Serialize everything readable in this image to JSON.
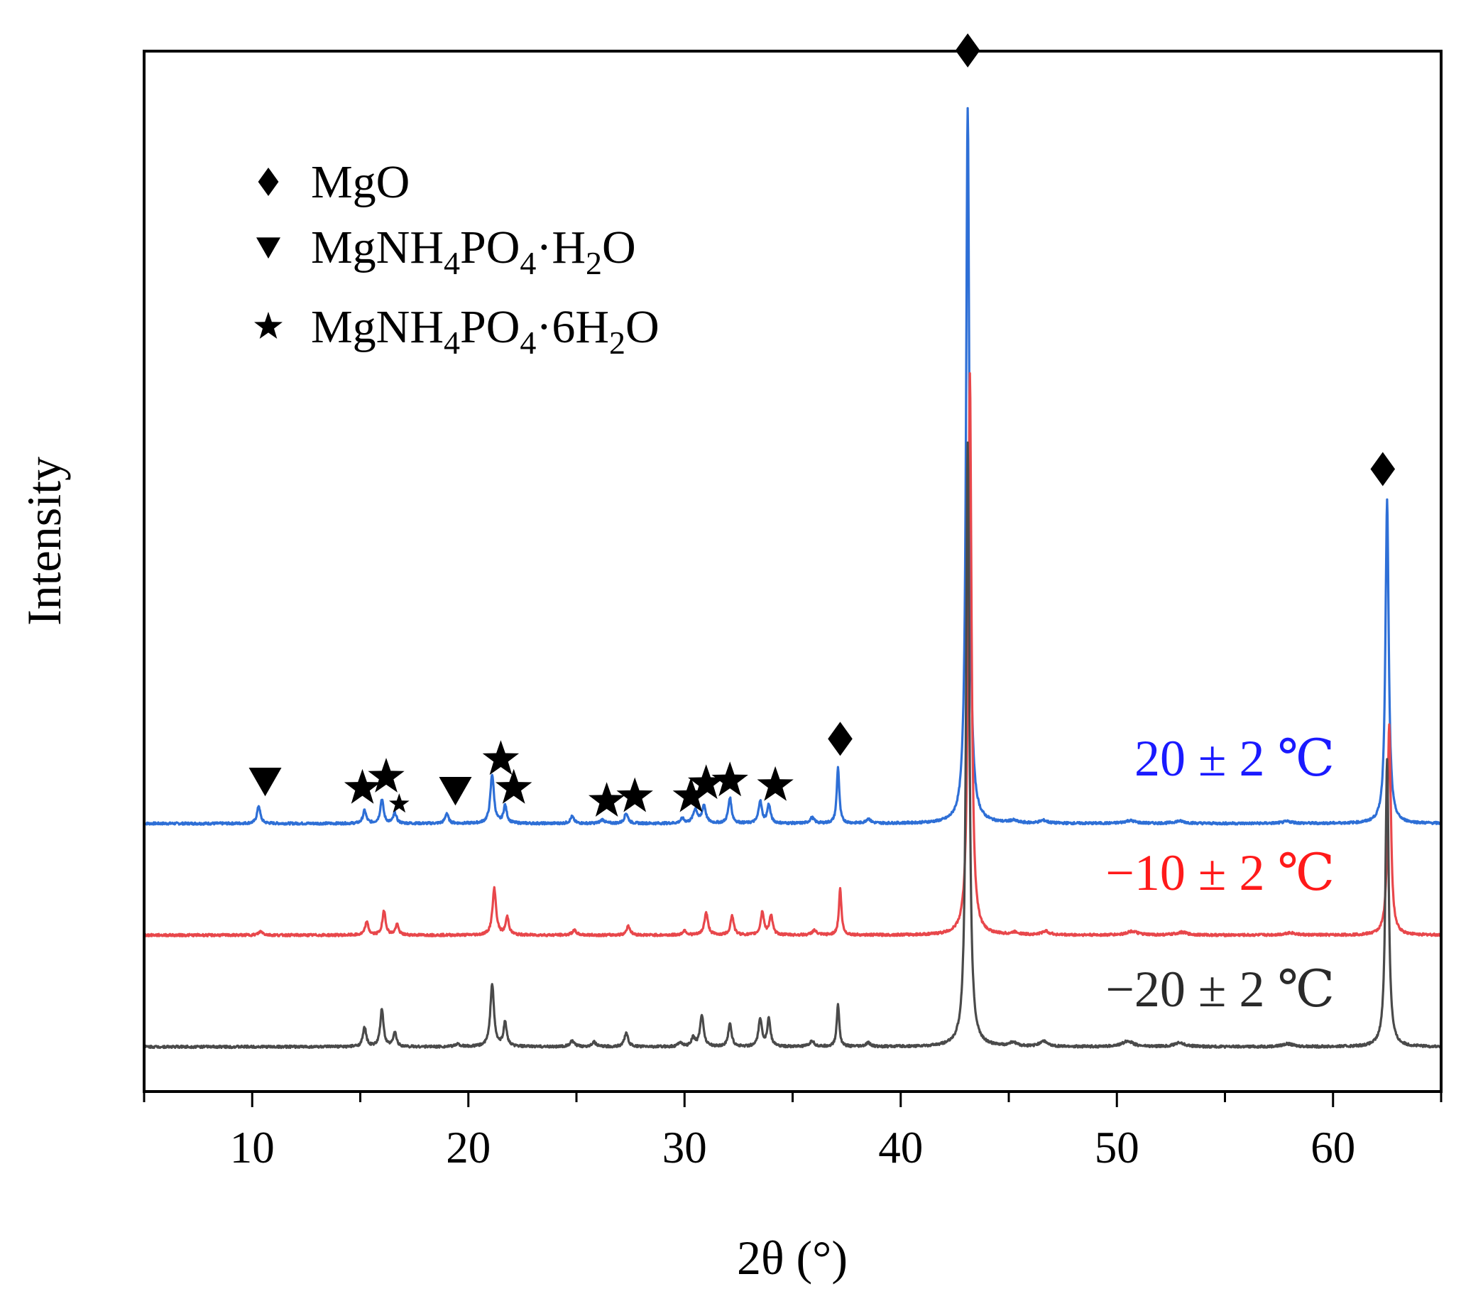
{
  "chart_data": {
    "type": "line",
    "title": "",
    "xlabel": "2θ (°)",
    "ylabel": "Intensity",
    "xlim": [
      5,
      65
    ],
    "xticks": [
      10,
      20,
      30,
      40,
      50,
      60
    ],
    "yticks_shown": false,
    "grid": false,
    "legend": {
      "placement": "top-left",
      "entries": [
        {
          "marker": "diamond",
          "phase": "MgO",
          "parts": [
            {
              "t": "MgO"
            }
          ]
        },
        {
          "marker": "triangle-down",
          "phase": "MgNH4PO4·H2O",
          "parts": [
            {
              "t": "MgNH"
            },
            {
              "t": "4",
              "sub": true
            },
            {
              "t": "PO"
            },
            {
              "t": "4",
              "sub": true
            },
            {
              "t": "·H"
            },
            {
              "t": "2",
              "sub": true
            },
            {
              "t": "O"
            }
          ]
        },
        {
          "marker": "star",
          "phase": "MgNH4PO4·6H2O",
          "parts": [
            {
              "t": "MgNH"
            },
            {
              "t": "4",
              "sub": true
            },
            {
              "t": "PO"
            },
            {
              "t": "4",
              "sub": true
            },
            {
              "t": "·6H"
            },
            {
              "t": "2",
              "sub": true
            },
            {
              "t": "O"
            }
          ]
        }
      ]
    },
    "series": [
      {
        "name": "20 ± 2 ℃",
        "label": "20  ±  2 ℃",
        "color": "#2e6fd6",
        "label_color": "#1a1aff",
        "baseline": 4.8,
        "peaks": [
          [
            10.3,
            0.38,
            0.09
          ],
          [
            15.2,
            0.28,
            0.09
          ],
          [
            16.0,
            0.52,
            0.09
          ],
          [
            16.6,
            0.22,
            0.09
          ],
          [
            19.0,
            0.22,
            0.09
          ],
          [
            21.1,
            1.05,
            0.1
          ],
          [
            21.7,
            0.38,
            0.09
          ],
          [
            24.8,
            0.15,
            0.1
          ],
          [
            26.2,
            0.08,
            0.12
          ],
          [
            27.3,
            0.22,
            0.1
          ],
          [
            29.9,
            0.1,
            0.1
          ],
          [
            30.5,
            0.3,
            0.12
          ],
          [
            30.9,
            0.38,
            0.1
          ],
          [
            32.1,
            0.55,
            0.09
          ],
          [
            33.5,
            0.48,
            0.09
          ],
          [
            33.9,
            0.4,
            0.09
          ],
          [
            35.9,
            0.12,
            0.12
          ],
          [
            37.1,
            1.2,
            0.07
          ],
          [
            38.5,
            0.1,
            0.12
          ],
          [
            43.1,
            15.4,
            0.09
          ],
          [
            62.5,
            6.95,
            0.09
          ],
          [
            45.2,
            0.05,
            0.2
          ],
          [
            46.6,
            0.06,
            0.2
          ],
          [
            50.6,
            0.06,
            0.3
          ],
          [
            52.9,
            0.05,
            0.3
          ],
          [
            57.9,
            0.04,
            0.3
          ]
        ]
      },
      {
        "name": "−10 ± 2 ℃",
        "label": "−10  ±  2 ℃",
        "color": "#e8474b",
        "label_color": "#ff1a1a",
        "baseline": 2.4,
        "peaks": [
          [
            10.4,
            0.08,
            0.12
          ],
          [
            15.3,
            0.28,
            0.09
          ],
          [
            16.1,
            0.52,
            0.09
          ],
          [
            16.7,
            0.22,
            0.09
          ],
          [
            21.2,
            1.0,
            0.1
          ],
          [
            21.8,
            0.38,
            0.09
          ],
          [
            24.9,
            0.1,
            0.12
          ],
          [
            27.4,
            0.2,
            0.1
          ],
          [
            30.0,
            0.1,
            0.1
          ],
          [
            31.0,
            0.48,
            0.1
          ],
          [
            32.2,
            0.42,
            0.09
          ],
          [
            33.6,
            0.5,
            0.09
          ],
          [
            34.0,
            0.42,
            0.09
          ],
          [
            36.0,
            0.1,
            0.12
          ],
          [
            37.2,
            1.0,
            0.07
          ],
          [
            43.2,
            12.1,
            0.09
          ],
          [
            62.6,
            4.55,
            0.09
          ],
          [
            45.3,
            0.05,
            0.2
          ],
          [
            46.7,
            0.08,
            0.2
          ],
          [
            50.7,
            0.08,
            0.3
          ],
          [
            53.0,
            0.06,
            0.3
          ],
          [
            58.0,
            0.05,
            0.3
          ]
        ]
      },
      {
        "name": "−20 ± 2 ℃",
        "label": "−20  ±  2 ℃",
        "color": "#4a4a4a",
        "label_color": "#2a2a2a",
        "baseline": 0.0,
        "peaks": [
          [
            15.2,
            0.42,
            0.09
          ],
          [
            16.0,
            0.8,
            0.09
          ],
          [
            16.6,
            0.3,
            0.09
          ],
          [
            19.5,
            0.06,
            0.12
          ],
          [
            21.1,
            1.35,
            0.1
          ],
          [
            21.7,
            0.52,
            0.09
          ],
          [
            24.8,
            0.12,
            0.12
          ],
          [
            25.8,
            0.1,
            0.12
          ],
          [
            27.3,
            0.3,
            0.1
          ],
          [
            29.8,
            0.1,
            0.1
          ],
          [
            30.4,
            0.18,
            0.1
          ],
          [
            30.8,
            0.68,
            0.1
          ],
          [
            32.1,
            0.5,
            0.09
          ],
          [
            33.5,
            0.6,
            0.09
          ],
          [
            33.9,
            0.6,
            0.09
          ],
          [
            35.9,
            0.12,
            0.12
          ],
          [
            37.1,
            0.9,
            0.07
          ],
          [
            38.5,
            0.08,
            0.12
          ],
          [
            43.1,
            13.0,
            0.09
          ],
          [
            62.5,
            6.2,
            0.09
          ],
          [
            45.2,
            0.08,
            0.2
          ],
          [
            46.6,
            0.12,
            0.2
          ],
          [
            50.5,
            0.12,
            0.3
          ],
          [
            52.9,
            0.08,
            0.3
          ],
          [
            57.9,
            0.06,
            0.3
          ]
        ]
      }
    ],
    "phase_markers": [
      {
        "phase": "MgNH4PO4·H2O",
        "marker": "triangle-down",
        "x": 10.6,
        "y": 5.72,
        "size": "large"
      },
      {
        "phase": "MgNH4PO4·H2O",
        "marker": "triangle-down",
        "x": 19.4,
        "y": 5.52,
        "size": "large"
      },
      {
        "phase": "MgNH4PO4·6H2O",
        "marker": "star",
        "x": 15.1,
        "y": 5.56,
        "size": "large"
      },
      {
        "phase": "MgNH4PO4·6H2O",
        "marker": "star",
        "x": 16.2,
        "y": 5.8,
        "size": "large"
      },
      {
        "phase": "MgNH4PO4·6H2O",
        "marker": "star",
        "x": 16.8,
        "y": 5.22,
        "size": "small"
      },
      {
        "phase": "MgNH4PO4·6H2O",
        "marker": "star",
        "x": 21.5,
        "y": 6.18,
        "size": "large"
      },
      {
        "phase": "MgNH4PO4·6H2O",
        "marker": "star",
        "x": 22.1,
        "y": 5.56,
        "size": "large"
      },
      {
        "phase": "MgNH4PO4·6H2O",
        "marker": "star",
        "x": 26.4,
        "y": 5.28,
        "size": "large"
      },
      {
        "phase": "MgNH4PO4·6H2O",
        "marker": "star",
        "x": 27.7,
        "y": 5.38,
        "size": "large"
      },
      {
        "phase": "MgNH4PO4·6H2O",
        "marker": "star",
        "x": 30.3,
        "y": 5.38,
        "size": "large"
      },
      {
        "phase": "MgNH4PO4·6H2O",
        "marker": "star",
        "x": 31.0,
        "y": 5.66,
        "size": "large"
      },
      {
        "phase": "MgNH4PO4·6H2O",
        "marker": "star",
        "x": 32.1,
        "y": 5.72,
        "size": "large"
      },
      {
        "phase": "MgNH4PO4·6H2O",
        "marker": "star",
        "x": 34.2,
        "y": 5.62,
        "size": "large"
      },
      {
        "phase": "MgO",
        "marker": "diamond",
        "x": 37.2,
        "y": 6.62,
        "size": "large"
      },
      {
        "phase": "MgO",
        "marker": "diamond",
        "x": 43.1,
        "y": 21.42,
        "size": "large"
      },
      {
        "phase": "MgO",
        "marker": "diamond",
        "x": 62.3,
        "y": 12.42,
        "size": "large"
      }
    ]
  }
}
